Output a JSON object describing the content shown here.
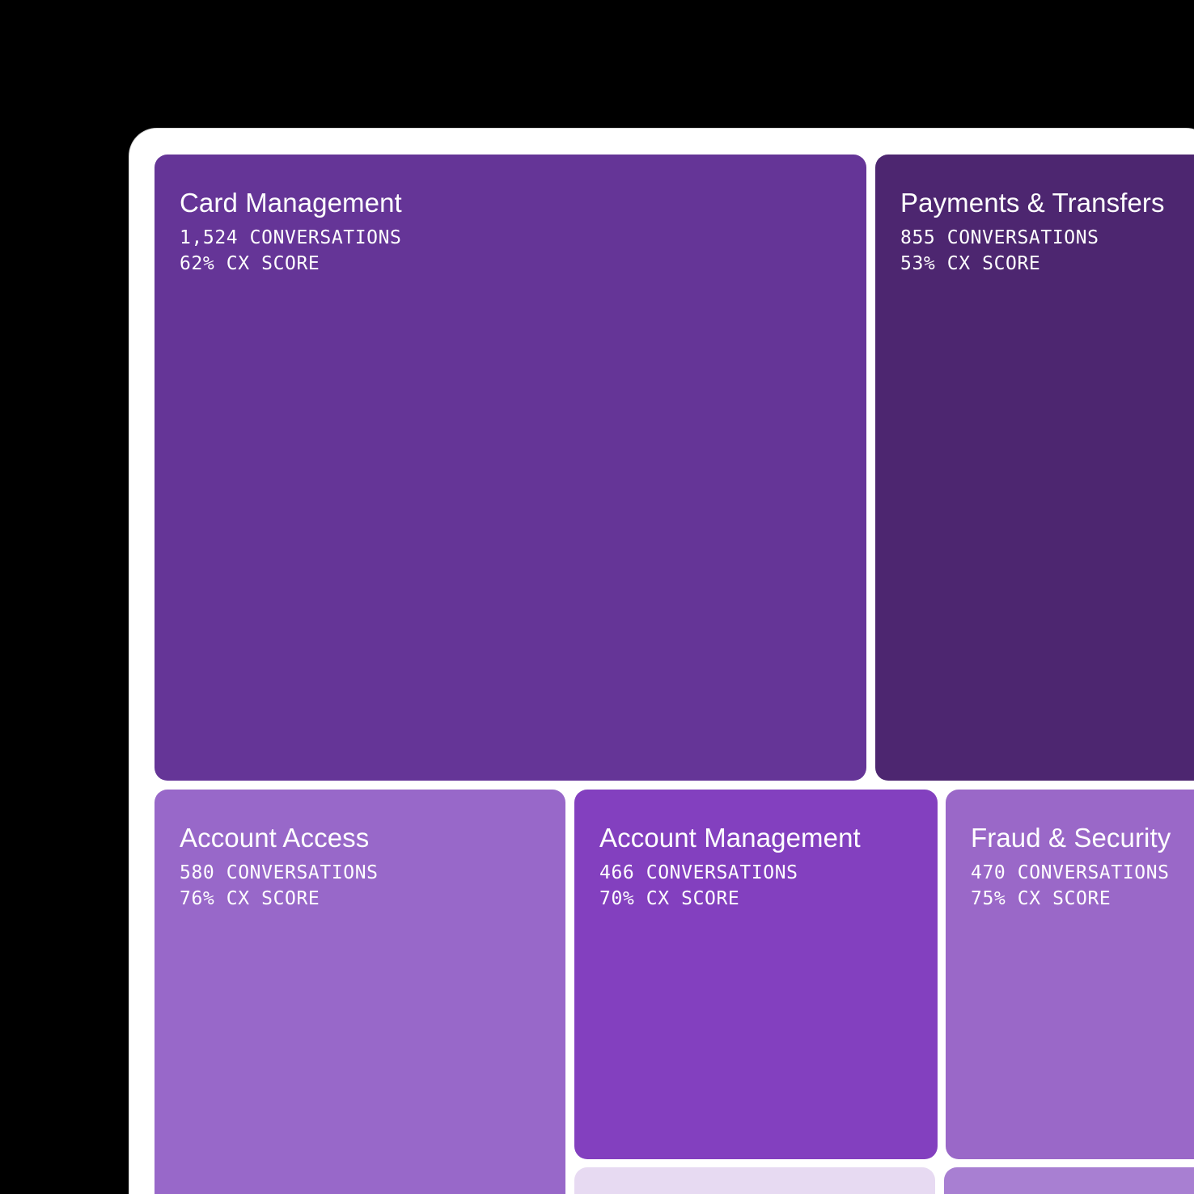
{
  "colors": {
    "background": "#000000",
    "panel": "#ffffff",
    "text_light": "#ffffff"
  },
  "treemap": {
    "tiles": [
      {
        "id": "card-management",
        "title": "Card Management",
        "conversations": "1,524 CONVERSATIONS",
        "cx_score": "62% CX SCORE",
        "color": "#653597"
      },
      {
        "id": "payments-transfers",
        "title": "Payments & Transfers",
        "conversations": "855 CONVERSATIONS",
        "cx_score": "53% CX SCORE",
        "color": "#4d2670"
      },
      {
        "id": "account-access",
        "title": "Account Access",
        "conversations": "580 CONVERSATIONS",
        "cx_score": "76% CX SCORE",
        "color": "#9868c9"
      },
      {
        "id": "account-management",
        "title": "Account Management",
        "conversations": "466 CONVERSATIONS",
        "cx_score": "70% CX SCORE",
        "color": "#8340bf"
      },
      {
        "id": "fraud-security",
        "title": "Fraud & Security",
        "conversations": "470 CONVERSATIONS",
        "cx_score": "75% CX SCORE",
        "color": "#9a68c8"
      },
      {
        "id": "unlabeled-bottom-middle",
        "title": "",
        "conversations": "",
        "cx_score": "",
        "color": "#e7daf2"
      },
      {
        "id": "unlabeled-bottom-right",
        "title": "",
        "conversations": "",
        "cx_score": "",
        "color": "#a87fd2"
      }
    ]
  }
}
